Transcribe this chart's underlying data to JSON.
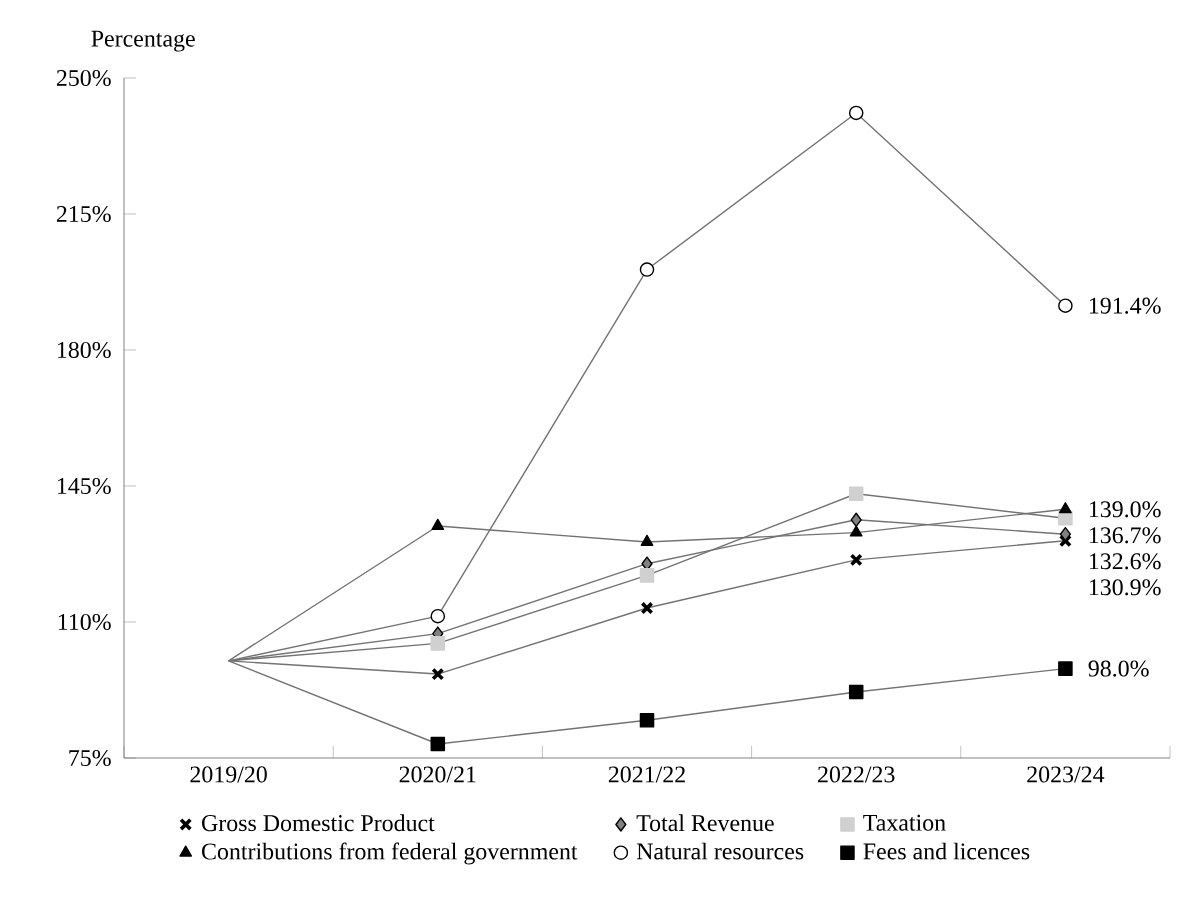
{
  "chart_data": {
    "type": "line",
    "ylabel": "Percentage",
    "categories": [
      "2019/20",
      "2020/21",
      "2021/22",
      "2022/23",
      "2023/24"
    ],
    "series": [
      {
        "name": "Gross Domestic Product",
        "color": "#000000",
        "marker": "cross",
        "values": [
          100,
          96.6,
          113.6,
          126,
          130.9
        ],
        "value_labels": [
          null,
          null,
          null,
          null,
          "130.9%"
        ]
      },
      {
        "name": "Total Revenue",
        "color": "#808080",
        "marker": "diamond",
        "values": [
          100,
          107,
          125,
          136.3,
          132.6
        ],
        "value_labels": [
          null,
          null,
          null,
          null,
          "132.6%"
        ]
      },
      {
        "name": "Taxation",
        "color": "#d0d0d0",
        "marker": "square",
        "values": [
          100,
          104.5,
          122,
          143,
          136.7
        ],
        "value_labels": [
          null,
          null,
          null,
          null,
          "136.7%"
        ]
      },
      {
        "name": "Contributions from federal government",
        "color": "#000000",
        "marker": "triangle",
        "values": [
          100,
          134.7,
          130.6,
          133,
          139.0
        ],
        "value_labels": [
          null,
          null,
          null,
          null,
          "139.0%"
        ]
      },
      {
        "name": "Natural resources",
        "color": "#ffffff",
        "marker": "circle",
        "values": [
          100,
          111.5,
          200.7,
          241,
          191.4
        ],
        "value_labels": [
          null,
          null,
          null,
          null,
          "191.4%"
        ]
      },
      {
        "name": "Fees and licences",
        "color": "#000000",
        "marker": "square",
        "values": [
          100,
          78.6,
          84.7,
          92,
          98.0
        ],
        "value_labels": [
          null,
          null,
          null,
          null,
          "98.0%"
        ]
      }
    ],
    "ylim": [
      75,
      250
    ],
    "yticks": [
      {
        "value": 75,
        "label": "75%"
      },
      {
        "value": 110,
        "label": "110%"
      },
      {
        "value": 145,
        "label": "145%"
      },
      {
        "value": 180,
        "label": "180%"
      },
      {
        "value": 215,
        "label": "215%"
      },
      {
        "value": 250,
        "label": "250%"
      }
    ],
    "legend": "bottom",
    "line_style": "solid"
  }
}
